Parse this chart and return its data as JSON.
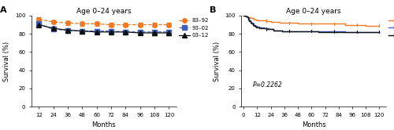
{
  "title": "Age 0–24 years",
  "panel_A_label": "A",
  "panel_B_label": "B",
  "xlabel": "Months",
  "ylabel": "Survival (%)",
  "x_ticks_A": [
    12,
    24,
    36,
    48,
    60,
    72,
    84,
    96,
    108,
    120
  ],
  "x_ticks_B": [
    0,
    12,
    24,
    36,
    48,
    60,
    72,
    84,
    96,
    108,
    120
  ],
  "ylim": [
    0,
    100
  ],
  "yticks": [
    0,
    20,
    40,
    60,
    80,
    100
  ],
  "color_orange": "#F07820",
  "color_blue": "#4060C0",
  "color_black": "#101010",
  "legend_labels": [
    "83–92",
    "93–02",
    "03–12"
  ],
  "p_value_text": "P=0.2262",
  "A_83_92_x": [
    12,
    24,
    36,
    48,
    60,
    72,
    84,
    96,
    108,
    120
  ],
  "A_83_92_y": [
    96,
    93,
    92,
    91,
    91,
    90,
    90,
    90,
    90,
    90
  ],
  "A_83_92_err": [
    2.5,
    2.0,
    2.0,
    2.0,
    2.0,
    2.0,
    2.0,
    2.5,
    2.5,
    2.5
  ],
  "A_93_02_x": [
    12,
    24,
    36,
    48,
    60,
    72,
    84,
    96,
    108,
    120
  ],
  "A_93_02_y": [
    91,
    85,
    84,
    83,
    83,
    83,
    82,
    82,
    82,
    82
  ],
  "A_93_02_err": [
    1.5,
    1.5,
    1.5,
    1.5,
    1.5,
    1.5,
    1.5,
    1.5,
    1.5,
    2.0
  ],
  "A_03_12_x": [
    12,
    24,
    36,
    48,
    60,
    72,
    84,
    96,
    108,
    120
  ],
  "A_03_12_y": [
    90,
    86,
    84,
    83,
    82,
    82,
    82,
    81,
    81,
    81
  ],
  "A_03_12_err": [
    1.5,
    1.5,
    1.5,
    1.5,
    1.5,
    1.5,
    2.0,
    2.0,
    2.5,
    3.0
  ],
  "B_83_92_x": [
    0,
    1,
    2,
    3,
    4,
    5,
    6,
    7,
    8,
    9,
    10,
    11,
    12,
    14,
    16,
    18,
    20,
    22,
    24,
    26,
    28,
    30,
    32,
    34,
    36,
    40,
    44,
    48,
    52,
    56,
    60,
    66,
    72,
    78,
    84,
    90,
    96,
    102,
    108,
    114,
    120
  ],
  "B_83_92_y": [
    100,
    100,
    99,
    99,
    98,
    98,
    97,
    97,
    97,
    96,
    96,
    96,
    95,
    95,
    95,
    95,
    94,
    94,
    93,
    93,
    93,
    93,
    92,
    92,
    92,
    92,
    92,
    91,
    91,
    91,
    91,
    91,
    91,
    91,
    91,
    90,
    90,
    90,
    89,
    89,
    89
  ],
  "B_93_02_x": [
    0,
    1,
    2,
    3,
    4,
    5,
    6,
    7,
    8,
    9,
    10,
    11,
    12,
    14,
    16,
    18,
    20,
    22,
    24,
    26,
    28,
    30,
    32,
    34,
    36,
    40,
    44,
    48,
    52,
    56,
    60,
    66,
    72,
    78,
    84,
    90,
    96,
    102,
    108,
    114,
    120
  ],
  "B_93_02_y": [
    100,
    100,
    99,
    98,
    97,
    95,
    93,
    92,
    91,
    90,
    89,
    89,
    88,
    87,
    87,
    86,
    86,
    85,
    85,
    84,
    84,
    84,
    84,
    83,
    83,
    83,
    83,
    83,
    83,
    83,
    83,
    83,
    83,
    83,
    83,
    82,
    82,
    82,
    82,
    82,
    82
  ],
  "B_03_12_x": [
    0,
    1,
    2,
    3,
    4,
    5,
    6,
    7,
    8,
    9,
    10,
    11,
    12,
    14,
    16,
    18,
    20,
    22,
    24,
    26,
    28,
    30,
    32,
    34,
    36,
    40,
    44,
    48,
    52,
    56,
    60,
    66,
    72,
    78,
    84,
    90,
    96,
    102,
    108,
    114,
    120
  ],
  "B_03_12_y": [
    100,
    100,
    99,
    98,
    96,
    94,
    92,
    91,
    90,
    89,
    88,
    87,
    87,
    86,
    86,
    86,
    85,
    85,
    85,
    84,
    84,
    84,
    84,
    83,
    83,
    83,
    83,
    83,
    83,
    83,
    83,
    82,
    82,
    82,
    82,
    82,
    82,
    82,
    82,
    82,
    82
  ],
  "censor_83_x": [
    20,
    40,
    60,
    80,
    100,
    120
  ],
  "censor_83_y": [
    94,
    92,
    91,
    91,
    90,
    89
  ],
  "censor_93_x": [
    20,
    40,
    60,
    80,
    100,
    120
  ],
  "censor_93_y": [
    86,
    83,
    83,
    83,
    82,
    82
  ],
  "censor_03_x": [
    20,
    40,
    60,
    80,
    100,
    120
  ],
  "censor_03_y": [
    85,
    83,
    83,
    82,
    82,
    82
  ]
}
